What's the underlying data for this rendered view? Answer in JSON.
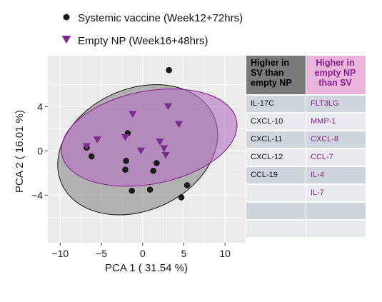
{
  "chart_data": {
    "type": "scatter",
    "xlabel": "PCA 1 ( 31.54 %)",
    "ylabel": "PCA 2 ( 16.01 %)",
    "xlim": [
      -11.5,
      12.5
    ],
    "ylim": [
      -8.3,
      8.6
    ],
    "xticks": [
      -10,
      -5,
      0,
      5,
      10
    ],
    "yticks": [
      -4,
      0,
      4
    ],
    "grid": true,
    "legend_position": "top",
    "series": [
      {
        "name": "Systemic vaccine (Week12+72hrs)",
        "marker": "circle",
        "color": "#1a1a1a",
        "points": [
          {
            "x": 3.2,
            "y": 7.3
          },
          {
            "x": -1.8,
            "y": 1.6
          },
          {
            "x": -6.8,
            "y": 0.3
          },
          {
            "x": -6.2,
            "y": -0.5
          },
          {
            "x": -2.0,
            "y": -0.9
          },
          {
            "x": -2.1,
            "y": -1.7
          },
          {
            "x": 1.7,
            "y": -1.1
          },
          {
            "x": 1.3,
            "y": -1.8
          },
          {
            "x": -1.3,
            "y": -3.6
          },
          {
            "x": 0.9,
            "y": -3.5
          },
          {
            "x": 5.4,
            "y": -3.1
          },
          {
            "x": 4.7,
            "y": -4.2
          }
        ]
      },
      {
        "name": "Empty NP (Week16+48hrs)",
        "marker": "triangle-down",
        "color": "#7b2a8e",
        "points": [
          {
            "x": 3.1,
            "y": 4.0
          },
          {
            "x": -1.2,
            "y": 3.3
          },
          {
            "x": 4.4,
            "y": 2.4
          },
          {
            "x": -5.5,
            "y": 1.0
          },
          {
            "x": -2.1,
            "y": 1.2
          },
          {
            "x": 2.1,
            "y": 0.8
          },
          {
            "x": 2.6,
            "y": 0.2
          },
          {
            "x": -0.2,
            "y": 0.0
          },
          {
            "x": 2.8,
            "y": -0.4
          },
          {
            "x": -6.8,
            "y": 0.4
          }
        ]
      }
    ],
    "ellipses": [
      {
        "series": "Systemic vaccine (Week12+72hrs)",
        "cx": -0.6,
        "cy": 0.1,
        "rx": 10.1,
        "ry": 5.5,
        "angle_deg": -24,
        "fill": "#8a8a8a",
        "stroke": "#222222"
      },
      {
        "series": "Empty NP (Week16+48hrs)",
        "cx": 0.8,
        "cy": 1.2,
        "rx": 10.8,
        "ry": 4.2,
        "angle_deg": -11,
        "fill": "#b46fc1",
        "stroke": "#8a2090"
      }
    ],
    "tick_labels": {
      "x": [
        "−10",
        "−5",
        "0",
        "5",
        "10"
      ],
      "y": [
        "−4",
        "0",
        "4"
      ]
    }
  },
  "table": {
    "header_left": [
      "Higher in",
      "SV than",
      "empty NP"
    ],
    "header_right": [
      "Higher in",
      "empty NP",
      "than SV"
    ],
    "rows": [
      {
        "left": "IL-17C",
        "right": "FLT3LG"
      },
      {
        "left": "CXCL-10",
        "right": "MMP-1"
      },
      {
        "left": "CXCL-11",
        "right": "CXCL-8"
      },
      {
        "left": "CXCL-12",
        "right": "CCL-7"
      },
      {
        "left": "CCL-19",
        "right": "IL-4"
      },
      {
        "left": "",
        "right": "IL-7"
      },
      {
        "left": "",
        "right": ""
      },
      {
        "left": "",
        "right": ""
      }
    ]
  },
  "colors": {
    "panel_bg": "#ebebeb",
    "grid": "#ffffff",
    "sv_point": "#1a1a1a",
    "np_point": "#7b2a8e"
  }
}
